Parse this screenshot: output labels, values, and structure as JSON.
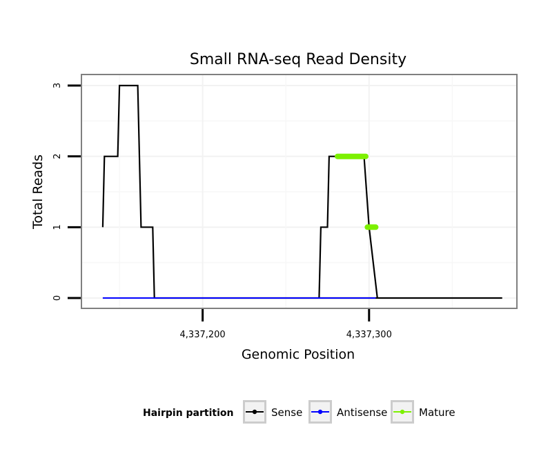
{
  "chart_data": {
    "type": "line",
    "title": "Small RNA-seq Read Density",
    "xlabel": "Genomic Position",
    "ylabel": "Total Reads",
    "xlim": [
      4337128,
      4337388
    ],
    "ylim": [
      0,
      3
    ],
    "x_ticks": [
      4337200,
      4337300
    ],
    "x_tick_labels": [
      "4,337,200",
      "4,337,300"
    ],
    "y_ticks": [
      0,
      1,
      2,
      3
    ],
    "y_tick_labels": [
      "0",
      "1",
      "2",
      "3"
    ],
    "grid": true,
    "legend": {
      "title": "Hairpin partition",
      "position": "bottom",
      "entries": [
        "Sense",
        "Antisense",
        "Mature"
      ]
    },
    "series": [
      {
        "name": "Sense",
        "color": "#000000",
        "x": [
          4337140,
          4337141,
          4337149,
          4337150,
          4337161,
          4337163,
          4337170,
          4337171,
          4337380
        ],
        "y": [
          1,
          2,
          2,
          3,
          3,
          1,
          1,
          0,
          0
        ]
      },
      {
        "name": "Antisense",
        "color": "#0000ff",
        "x": [
          4337140,
          4337304
        ],
        "y": [
          0,
          0
        ]
      },
      {
        "name": "Mature",
        "color": "#7cf000",
        "segments": [
          {
            "x": [
              4337281,
              4337298
            ],
            "y": [
              2,
              2
            ]
          },
          {
            "x": [
              4337299,
              4337304
            ],
            "y": [
              1,
              1
            ]
          }
        ]
      }
    ],
    "sense_tail": {
      "x": [
        4337270,
        4337271,
        4337275,
        4337276,
        4337297,
        4337300,
        4337305
      ],
      "y": [
        0,
        1,
        1,
        2,
        2,
        1,
        0
      ]
    }
  }
}
